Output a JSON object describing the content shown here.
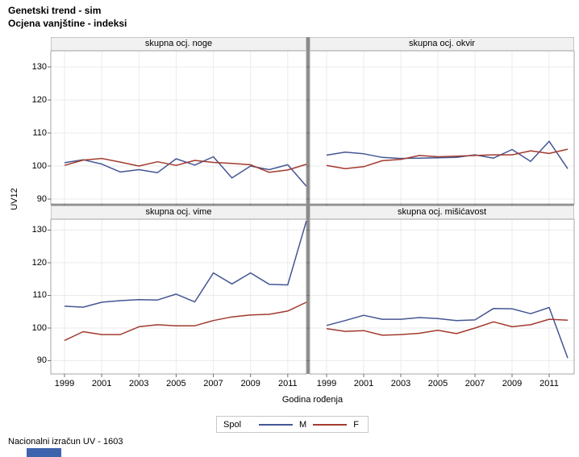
{
  "header": {
    "title_line1": "Genetski trend - sim",
    "title_line2": "Ocjena vanjštine - indeksi"
  },
  "footer": {
    "text": "Nacionalni izračun UV - 1603"
  },
  "colors": {
    "m_line": "#445694",
    "f_line": "#A23A2E",
    "grid": "#EBEBEB",
    "frame": "#A6A6A6",
    "divider": "#8A8A8A",
    "tick": "#707070",
    "bottom_bar": "#3F64AE"
  },
  "chart_data": {
    "type": "line",
    "title": "Genetski trend - sim",
    "subtitle": "Ocjena vanjštine - indeksi",
    "xlabel": "Godina rođenja",
    "ylabel": "UV12",
    "x": [
      1999,
      2000,
      2001,
      2002,
      2003,
      2004,
      2005,
      2006,
      2007,
      2008,
      2009,
      2010,
      2011,
      2012
    ],
    "x_ticks": [
      1999,
      2001,
      2003,
      2005,
      2007,
      2009,
      2011
    ],
    "y_ticks": [
      90,
      100,
      110,
      120,
      130
    ],
    "ylim": [
      88,
      134
    ],
    "grid": true,
    "legend": {
      "title": "Spol",
      "position": "bottom"
    },
    "series_names": [
      "M",
      "F"
    ],
    "panels": [
      {
        "title": "skupna ocj. noge",
        "series": [
          {
            "name": "M",
            "values": [
              101.0,
              101.9,
              100.6,
              98.2,
              98.9,
              98.0,
              102.2,
              100.3,
              102.8,
              96.4,
              100.0,
              98.9,
              100.4,
              93.9
            ]
          },
          {
            "name": "F",
            "values": [
              100.2,
              101.8,
              102.3,
              101.2,
              100.0,
              101.3,
              100.2,
              101.7,
              101.1,
              100.8,
              100.4,
              98.1,
              98.8,
              100.5
            ]
          }
        ]
      },
      {
        "title": "skupna ocj. okvir",
        "series": [
          {
            "name": "M",
            "values": [
              103.3,
              104.2,
              103.7,
              102.6,
              102.3,
              102.4,
              102.5,
              102.6,
              103.4,
              102.4,
              105.0,
              101.4,
              107.5,
              99.2
            ]
          },
          {
            "name": "F",
            "values": [
              100.2,
              99.2,
              99.8,
              101.6,
              102.0,
              103.2,
              102.8,
              103.0,
              103.2,
              103.4,
              103.4,
              104.6,
              103.8,
              105.1
            ]
          }
        ]
      },
      {
        "title": "skupna ocj. vime",
        "series": [
          {
            "name": "M",
            "values": [
              106.7,
              106.4,
              107.9,
              108.4,
              108.7,
              108.6,
              110.4,
              108.0,
              116.9,
              113.5,
              116.9,
              113.4,
              113.2,
              132.8
            ]
          },
          {
            "name": "F",
            "values": [
              96.2,
              98.9,
              98.0,
              98.0,
              100.4,
              101.0,
              100.7,
              100.7,
              102.3,
              103.4,
              104.0,
              104.2,
              105.2,
              107.9
            ]
          }
        ]
      },
      {
        "title": "skupna ocj. mišićavost",
        "series": [
          {
            "name": "M",
            "values": [
              100.8,
              102.3,
              103.9,
              102.7,
              102.7,
              103.2,
              102.9,
              102.3,
              102.5,
              106.0,
              105.9,
              104.4,
              106.3,
              90.8
            ]
          },
          {
            "name": "F",
            "values": [
              99.8,
              99.0,
              99.2,
              97.8,
              98.0,
              98.4,
              99.3,
              98.3,
              100.0,
              101.9,
              100.4,
              101.0,
              102.7,
              102.4
            ]
          }
        ]
      }
    ]
  }
}
